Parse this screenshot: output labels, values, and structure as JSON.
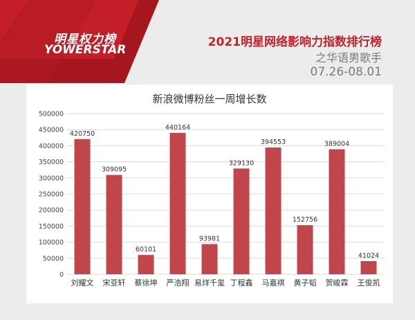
{
  "header": {
    "logo_cn": "明星权力榜",
    "logo_en": "YOWERSTAR",
    "title": "2021明星网络影响力指数排行榜",
    "subtitle": "之华语男歌手",
    "date_range": "07.26-08.01"
  },
  "colors": {
    "brand_red": "#c2222b",
    "bar": "#c0464b",
    "header_dark": "#a6161e"
  },
  "chart_data": {
    "type": "bar",
    "title": "新浪微博粉丝一周增长数",
    "categories": [
      "刘耀文",
      "宋亚轩",
      "蔡徐坤",
      "严浩翔",
      "易烊千玺",
      "丁程鑫",
      "马嘉祺",
      "黄子韬",
      "贺峻霖",
      "王俊凯"
    ],
    "values": [
      420750,
      309095,
      60101,
      440164,
      93981,
      329130,
      394553,
      152756,
      389004,
      41024
    ],
    "value_labels": [
      "420750",
      "309095",
      "60101",
      "440164",
      "93981",
      "329130",
      "394553",
      "152756",
      "389004",
      "41024"
    ],
    "ylim": [
      0,
      500000
    ],
    "yticks": [
      "0",
      "50000",
      "100000",
      "150000",
      "200000",
      "250000",
      "300000",
      "350000",
      "400000",
      "450000",
      "500000"
    ],
    "grid": true,
    "xlabel": "",
    "ylabel": ""
  }
}
